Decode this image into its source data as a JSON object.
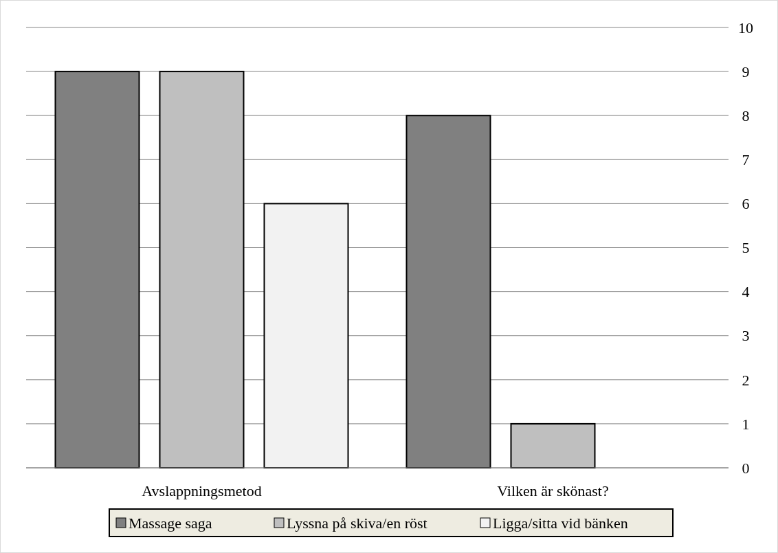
{
  "chart_data": {
    "type": "bar",
    "categories": [
      "Avslappningsmetod",
      "Vilken är skönast?"
    ],
    "series": [
      {
        "name": "Massage saga",
        "color": "#808080",
        "values": [
          9,
          8
        ]
      },
      {
        "name": "Lyssna på skiva/en röst",
        "color": "#bfbfbf",
        "values": [
          9,
          1
        ]
      },
      {
        "name": "Ligga/sitta vid bänken",
        "color": "#f2f2f2",
        "values": [
          6,
          0
        ]
      }
    ],
    "ylim": [
      0,
      10
    ],
    "yticks": [
      0,
      1,
      2,
      3,
      4,
      5,
      6,
      7,
      8,
      9,
      10
    ],
    "grid": "y",
    "legend": "bottom"
  }
}
